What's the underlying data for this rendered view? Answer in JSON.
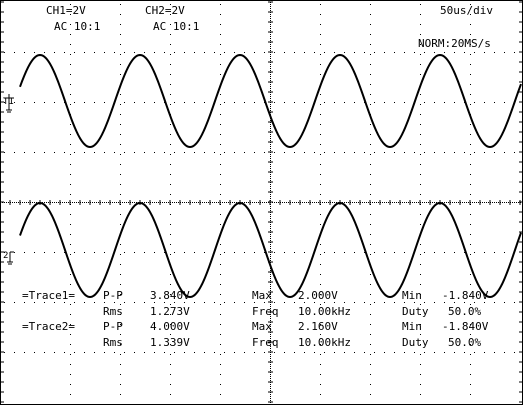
{
  "header": {
    "ch1_scale": "CH1=2V",
    "ch1_coupling": "AC 10:1",
    "ch2_scale": "CH2=2V",
    "ch2_coupling": "AC 10:1",
    "timebase": "50us/div",
    "acquisition": "NORM:20MS/s"
  },
  "markers": {
    "trigger_ch1": "T1",
    "ch2": "2"
  },
  "measurements": {
    "trace1": {
      "label": "=Trace1=",
      "pp_label": "P-P",
      "pp_value": "3.840V",
      "rms_label": "Rms",
      "rms_value": "1.273V",
      "max_label": "Max",
      "max_value": "2.000V",
      "freq_label": "Freq",
      "freq_value": "10.00kHz",
      "min_label": "Min",
      "min_value": "-1.840V",
      "duty_label": "Duty",
      "duty_value": "50.0%"
    },
    "trace2": {
      "label": "=Trace2=",
      "pp_label": "P-P",
      "pp_value": "4.000V",
      "rms_label": "Rms",
      "rms_value": "1.339V",
      "max_label": "Max",
      "max_value": "2.160V",
      "freq_label": "Freq",
      "freq_value": "10.00kHz",
      "min_label": "Min",
      "min_value": "-1.840V",
      "duty_label": "Duty",
      "duty_value": "50.0%"
    }
  },
  "colors": {
    "trace": "#000000",
    "grid": "#000000",
    "background": "#ffffff"
  }
}
